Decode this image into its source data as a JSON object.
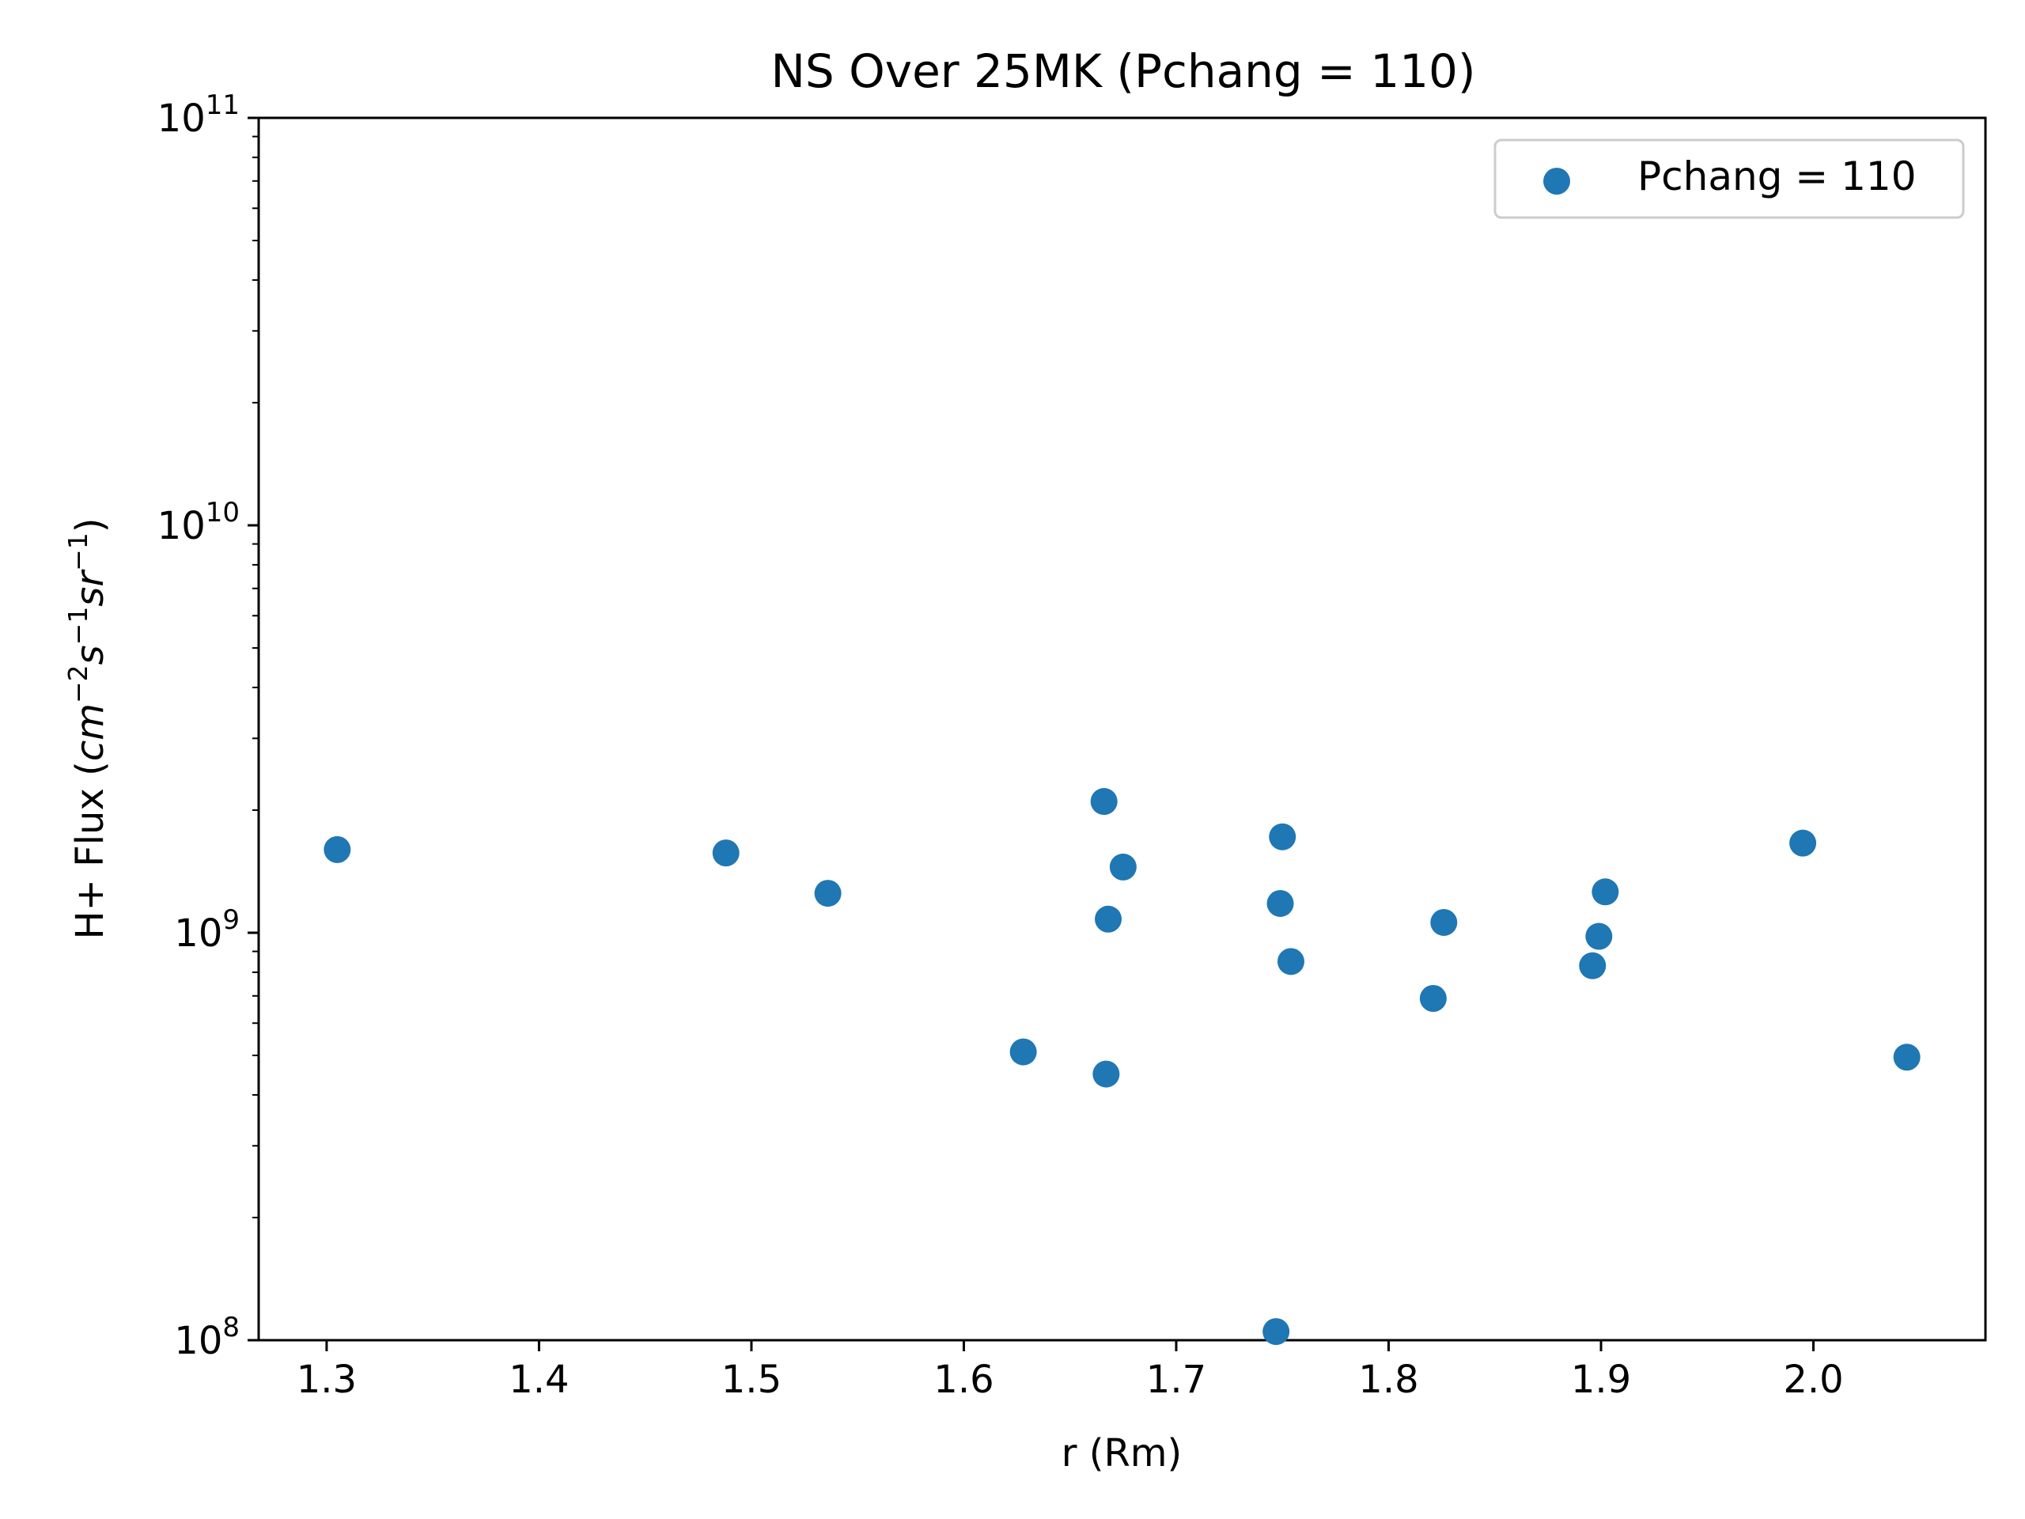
{
  "chart_data": {
    "type": "scatter",
    "title": "NS Over 25MK  (Pchang = 110)",
    "xlabel": "r (Rm)",
    "ylabel_main": "H+ Flux (",
    "ylabel_math": "cm^-2 s^-1 sr^-1",
    "ylabel_close": ")",
    "xlim": [
      1.268,
      2.081
    ],
    "ylim": [
      100000000.0,
      100000000000.0
    ],
    "yscale": "log",
    "grid": false,
    "legend_position": "top-right",
    "xticks": [
      "1.3",
      "1.4",
      "1.5",
      "1.6",
      "1.7",
      "1.8",
      "1.9",
      "2.0"
    ],
    "yticks": [
      {
        "base": "10",
        "exp": "8"
      },
      {
        "base": "10",
        "exp": "9"
      },
      {
        "base": "10",
        "exp": "10"
      },
      {
        "base": "10",
        "exp": "11"
      }
    ],
    "series": [
      {
        "name": "Pchang = 110",
        "color": "#1f77b4",
        "points": [
          {
            "x": 1.305,
            "y": 1600000000.0
          },
          {
            "x": 1.488,
            "y": 1570000000.0
          },
          {
            "x": 1.536,
            "y": 1250000000.0
          },
          {
            "x": 1.628,
            "y": 510000000.0
          },
          {
            "x": 1.666,
            "y": 2100000000.0
          },
          {
            "x": 1.667,
            "y": 450000000.0
          },
          {
            "x": 1.668,
            "y": 1080000000.0
          },
          {
            "x": 1.675,
            "y": 1450000000.0
          },
          {
            "x": 1.747,
            "y": 105000000.0
          },
          {
            "x": 1.749,
            "y": 1180000000.0
          },
          {
            "x": 1.75,
            "y": 1720000000.0
          },
          {
            "x": 1.754,
            "y": 850000000.0
          },
          {
            "x": 1.821,
            "y": 690000000.0
          },
          {
            "x": 1.826,
            "y": 1060000000.0
          },
          {
            "x": 1.896,
            "y": 830000000.0
          },
          {
            "x": 1.899,
            "y": 980000000.0
          },
          {
            "x": 1.902,
            "y": 1260000000.0
          },
          {
            "x": 1.995,
            "y": 1660000000.0
          },
          {
            "x": 2.044,
            "y": 495000000.0
          }
        ]
      }
    ]
  }
}
